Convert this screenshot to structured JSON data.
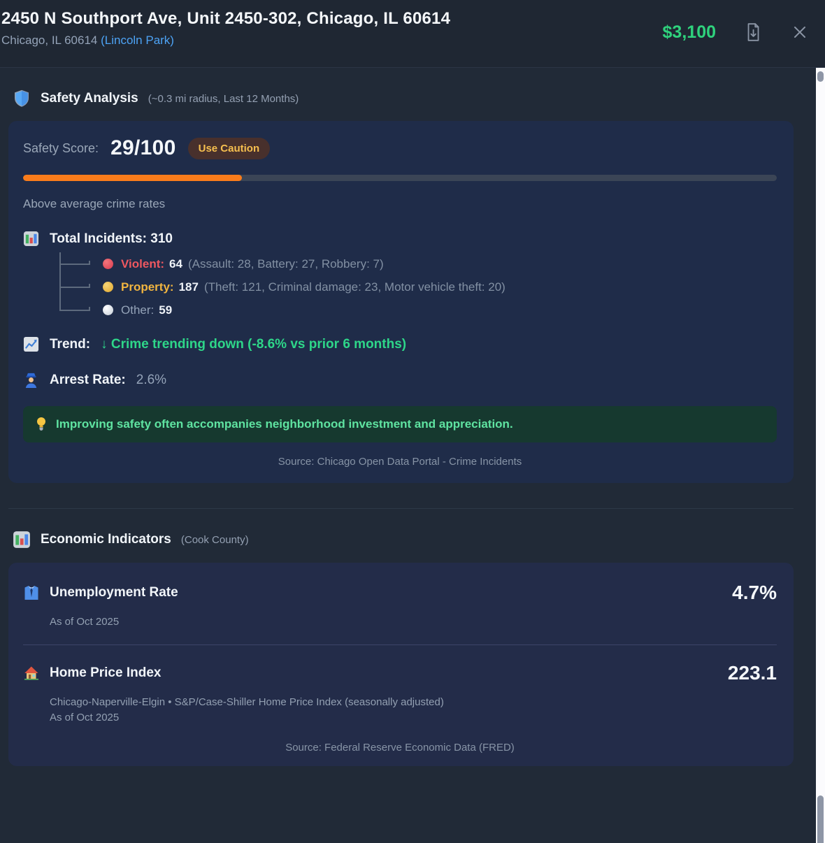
{
  "header": {
    "title": "2450 N Southport Ave, Unit 2450-302, Chicago, IL 60614",
    "subtitle_prefix": "Chicago, IL 60614 ",
    "neighborhood_link": "(Lincoln Park)",
    "price": "$3,100"
  },
  "safety": {
    "title": "Safety Analysis",
    "subtitle": "(~0.3 mi radius, Last 12 Months)",
    "score_label": "Safety Score:",
    "score_value": "29/100",
    "score_percent": 29,
    "badge": "Use Caution",
    "summary": "Above average crime rates",
    "incidents_label": "Total Incidents:",
    "incidents_value": "310",
    "breakdown": [
      {
        "label": "Violent:",
        "value": "64",
        "detail": "(Assault: 28, Battery: 27, Robbery: 7)"
      },
      {
        "label": "Property:",
        "value": "187",
        "detail": "(Theft: 121, Criminal damage: 23, Motor vehicle theft: 20)"
      },
      {
        "label": "Other:",
        "value": "59",
        "detail": ""
      }
    ],
    "trend_label": "Trend:",
    "trend_value": "↓ Crime trending down (-8.6% vs prior 6 months)",
    "arrest_label": "Arrest Rate:",
    "arrest_value": "2.6%",
    "tip": "Improving safety often accompanies neighborhood investment and appreciation.",
    "source": "Source: Chicago Open Data Portal - Crime Incidents"
  },
  "economic": {
    "title": "Economic Indicators",
    "subtitle": "(Cook County)",
    "indicators": [
      {
        "name": "Unemployment Rate",
        "value": "4.7%",
        "meta1": "As of Oct 2025",
        "meta2": ""
      },
      {
        "name": "Home Price Index",
        "value": "223.1",
        "meta1": "Chicago-Naperville-Elgin • S&P/Case-Shiller Home Price Index (seasonally adjusted)",
        "meta2": "As of Oct 2025"
      }
    ],
    "source": "Source: Federal Reserve Economic Data (FRED)"
  },
  "icons": {
    "safety_section": "shield-icon",
    "incidents": "bar-chart-icon",
    "violent": "red-circle-icon",
    "property": "yellow-circle-icon",
    "other": "white-circle-icon",
    "trend": "line-chart-icon",
    "arrest": "police-officer-icon",
    "tip": "lightbulb-icon",
    "economic_section": "bar-chart-icon",
    "unemployment": "necktie-icon",
    "home_price": "house-icon",
    "header_actions": [
      "download-file-icon",
      "close-icon"
    ]
  },
  "colors": {
    "price_green": "#2fd27d",
    "link_blue": "#4da3f5",
    "trend_green": "#2ed689",
    "tip_green": "#5fe3a1",
    "violent_red": "#ee5860",
    "property_amber": "#f0b440",
    "score_bar_orange": "#f97c1b",
    "badge_text": "#f6bf4f",
    "badge_bg": "#48302c"
  }
}
